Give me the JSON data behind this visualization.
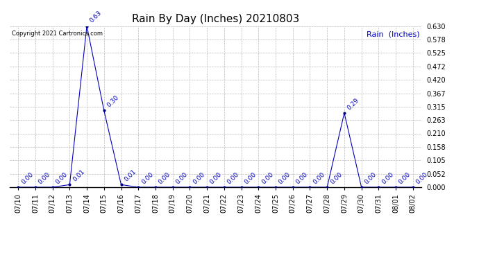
{
  "title": "Rain By Day (Inches) 20210803",
  "legend_text": "Rain  (Inches)",
  "copyright_text": "Copyright 2021 Cartronics.com",
  "dates": [
    "07/10",
    "07/11",
    "07/12",
    "07/13",
    "07/14",
    "07/15",
    "07/16",
    "07/17",
    "07/18",
    "07/19",
    "07/20",
    "07/21",
    "07/22",
    "07/23",
    "07/24",
    "07/25",
    "07/26",
    "07/27",
    "07/28",
    "07/29",
    "07/30",
    "07/31",
    "08/01",
    "08/02"
  ],
  "values": [
    0.0,
    0.0,
    0.0,
    0.01,
    0.63,
    0.3,
    0.01,
    0.0,
    0.0,
    0.0,
    0.0,
    0.0,
    0.0,
    0.0,
    0.0,
    0.0,
    0.0,
    0.0,
    0.0,
    0.29,
    0.0,
    0.0,
    0.0,
    0.0
  ],
  "line_color": "#0000bb",
  "marker_color": "#000080",
  "label_color": "#0000bb",
  "background_color": "#ffffff",
  "grid_color": "#bbbbbb",
  "ylim": [
    0.0,
    0.63
  ],
  "yticks": [
    0.0,
    0.052,
    0.105,
    0.158,
    0.21,
    0.263,
    0.315,
    0.367,
    0.42,
    0.472,
    0.525,
    0.578,
    0.63
  ],
  "title_fontsize": 11,
  "xtick_fontsize": 7,
  "ytick_fontsize": 7,
  "annotation_fontsize": 6.5,
  "copyright_fontsize": 6,
  "legend_fontsize": 8
}
